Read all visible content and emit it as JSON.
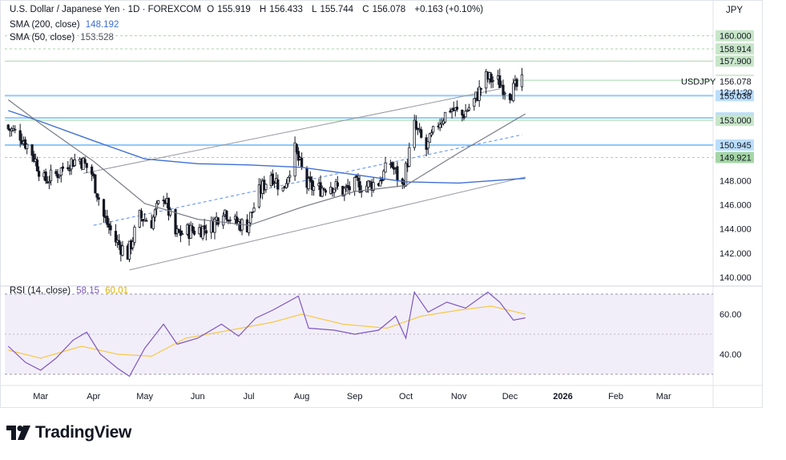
{
  "header": {
    "symbol_title": "U.S. Dollar / Japanese Yen · 1D · FOREXCOM",
    "ohlc": [
      {
        "label": "O",
        "value": "155.919"
      },
      {
        "label": "H",
        "value": "156.433"
      },
      {
        "label": "L",
        "value": "155.744"
      },
      {
        "label": "C",
        "value": "156.078"
      }
    ],
    "change": "+0.163 (+0.10%)"
  },
  "indicators": {
    "sma200": {
      "label": "SMA (200, close)",
      "value": "148.192"
    },
    "sma50": {
      "label": "SMA (50, close)",
      "value": "153.528"
    },
    "rsi": {
      "label": "RSI (14, close)",
      "value": "58.15",
      "ma_value": "60.01"
    }
  },
  "currency": "JPY",
  "branding": "TradingView",
  "colors": {
    "up": "#131722",
    "down": "#131722",
    "sma200": "#3f6fd6",
    "sma50": "#787b86",
    "rsi": "#7e57c2",
    "rsi_ma": "#f7c948",
    "green_label": "#c8e6c9",
    "blue_label": "#bbdefb"
  },
  "chart_data": {
    "type": "candlestick",
    "symbol_label": "USDJPY",
    "countdown": "12:41:20",
    "price_axis": {
      "ticks": [
        140,
        142,
        144,
        146,
        148,
        150,
        152,
        154,
        156,
        158,
        160
      ],
      "tick_labels": [
        "140.000",
        "142.000",
        "144.000",
        "146.000",
        "148.000"
      ],
      "range": [
        139.2,
        161.5
      ]
    },
    "time_axis": {
      "labels": [
        "Mar",
        "Apr",
        "May",
        "Jun",
        "Jul",
        "Aug",
        "Sep",
        "Oct",
        "Nov",
        "Dec",
        "2026",
        "Feb",
        "Mar"
      ],
      "label_dates": [
        "2025-03-01",
        "2025-04-01",
        "2025-05-01",
        "2025-06-01",
        "2025-07-01",
        "2025-08-01",
        "2025-09-01",
        "2025-10-01",
        "2025-11-01",
        "2025-12-01",
        "2026-01-01",
        "2026-02-01",
        "2026-03-01"
      ],
      "start_date": "2025-02-08",
      "end_date": "2026-03-30"
    },
    "price_levels": [
      {
        "price": 160.0,
        "label": "160.000",
        "style": "green"
      },
      {
        "price": 158.914,
        "label": "158.914",
        "style": "green"
      },
      {
        "price": 157.9,
        "label": "157.900",
        "style": "green"
      },
      {
        "price": 156.318,
        "label": "156.318",
        "style": "green"
      },
      {
        "price": 156.078,
        "label": "156.078",
        "style": "current"
      },
      {
        "price": 155.038,
        "label": "155.038",
        "style": "blue"
      },
      {
        "price": 153.194,
        "label": "153.194",
        "style": "blue"
      },
      {
        "price": 153.0,
        "label": "153.000",
        "style": "green"
      },
      {
        "price": 150.945,
        "label": "150.945",
        "style": "blue"
      },
      {
        "price": 149.921,
        "label": "149.921",
        "style": "green-strong"
      }
    ],
    "close_series": [
      [
        "2025-02-10",
        152.3
      ],
      [
        "2025-02-17",
        151.8
      ],
      [
        "2025-02-24",
        150.3
      ],
      [
        "2025-03-03",
        148.0
      ],
      [
        "2025-03-10",
        148.5
      ],
      [
        "2025-03-17",
        149.5
      ],
      [
        "2025-03-24",
        149.8
      ],
      [
        "2025-03-31",
        148.6
      ],
      [
        "2025-04-07",
        145.0
      ],
      [
        "2025-04-14",
        143.0
      ],
      [
        "2025-04-21",
        141.9
      ],
      [
        "2025-04-28",
        145.0
      ],
      [
        "2025-05-05",
        144.6
      ],
      [
        "2025-05-12",
        146.9
      ],
      [
        "2025-05-19",
        143.5
      ],
      [
        "2025-05-26",
        143.8
      ],
      [
        "2025-06-02",
        144.0
      ],
      [
        "2025-06-09",
        144.2
      ],
      [
        "2025-06-16",
        145.7
      ],
      [
        "2025-06-23",
        144.5
      ],
      [
        "2025-06-30",
        144.3
      ],
      [
        "2025-07-07",
        147.0
      ],
      [
        "2025-07-14",
        148.6
      ],
      [
        "2025-07-21",
        147.2
      ],
      [
        "2025-07-28",
        150.5
      ],
      [
        "2025-08-04",
        147.6
      ],
      [
        "2025-08-11",
        147.3
      ],
      [
        "2025-08-18",
        147.7
      ],
      [
        "2025-08-25",
        147.1
      ],
      [
        "2025-09-01",
        147.6
      ],
      [
        "2025-09-08",
        147.6
      ],
      [
        "2025-09-15",
        147.9
      ],
      [
        "2025-09-22",
        149.5
      ],
      [
        "2025-09-29",
        147.5
      ],
      [
        "2025-10-06",
        152.5
      ],
      [
        "2025-10-13",
        150.6
      ],
      [
        "2025-10-20",
        152.8
      ],
      [
        "2025-10-27",
        154.0
      ],
      [
        "2025-11-03",
        153.4
      ],
      [
        "2025-11-10",
        154.6
      ],
      [
        "2025-11-17",
        156.5
      ],
      [
        "2025-11-24",
        156.2
      ],
      [
        "2025-12-01",
        155.3
      ],
      [
        "2025-12-08",
        156.08
      ]
    ],
    "sma200_series": [
      [
        "2025-02-10",
        153.8
      ],
      [
        "2025-03-01",
        152.9
      ],
      [
        "2025-04-01",
        151.3
      ],
      [
        "2025-05-01",
        149.8
      ],
      [
        "2025-06-01",
        149.4
      ],
      [
        "2025-07-01",
        149.3
      ],
      [
        "2025-08-01",
        149.1
      ],
      [
        "2025-09-01",
        148.5
      ],
      [
        "2025-10-01",
        147.9
      ],
      [
        "2025-11-01",
        147.8
      ],
      [
        "2025-12-10",
        148.19
      ]
    ],
    "sma50_series": [
      [
        "2025-02-10",
        154.7
      ],
      [
        "2025-03-01",
        152.7
      ],
      [
        "2025-04-01",
        149.6
      ],
      [
        "2025-05-01",
        146.1
      ],
      [
        "2025-06-01",
        144.8
      ],
      [
        "2025-07-01",
        144.3
      ],
      [
        "2025-08-01",
        145.8
      ],
      [
        "2025-09-01",
        147.1
      ],
      [
        "2025-10-01",
        147.6
      ],
      [
        "2025-11-01",
        150.3
      ],
      [
        "2025-12-10",
        153.53
      ]
    ],
    "channel_lines": [
      {
        "style": "solid",
        "from": [
          "2025-03-26",
          148.6
        ],
        "to": [
          "2025-11-25",
          155.6
        ]
      },
      {
        "style": "solid",
        "from": [
          "2025-04-22",
          140.6
        ],
        "to": [
          "2025-12-10",
          148.3
        ]
      },
      {
        "style": "dashed",
        "from": [
          "2025-04-01",
          144.3
        ],
        "to": [
          "2025-12-08",
          151.8
        ]
      }
    ],
    "rsi": {
      "axis_ticks": [
        40,
        60
      ],
      "tick_labels": [
        "40.00",
        "60.00"
      ],
      "range": [
        26,
        74
      ],
      "band": [
        30,
        70
      ],
      "series": [
        [
          "2025-02-10",
          44
        ],
        [
          "2025-02-20",
          36
        ],
        [
          "2025-03-01",
          32
        ],
        [
          "2025-03-10",
          38
        ],
        [
          "2025-03-20",
          47
        ],
        [
          "2025-03-28",
          51
        ],
        [
          "2025-04-05",
          40
        ],
        [
          "2025-04-15",
          33
        ],
        [
          "2025-04-22",
          29
        ],
        [
          "2025-05-01",
          43
        ],
        [
          "2025-05-12",
          55
        ],
        [
          "2025-05-20",
          45
        ],
        [
          "2025-06-01",
          48
        ],
        [
          "2025-06-15",
          55
        ],
        [
          "2025-06-25",
          49
        ],
        [
          "2025-07-05",
          58
        ],
        [
          "2025-07-15",
          62
        ],
        [
          "2025-07-30",
          69
        ],
        [
          "2025-08-05",
          53
        ],
        [
          "2025-08-20",
          52
        ],
        [
          "2025-09-01",
          50
        ],
        [
          "2025-09-15",
          52
        ],
        [
          "2025-09-25",
          59
        ],
        [
          "2025-10-01",
          48
        ],
        [
          "2025-10-06",
          71
        ],
        [
          "2025-10-14",
          61
        ],
        [
          "2025-10-25",
          66
        ],
        [
          "2025-11-05",
          63
        ],
        [
          "2025-11-18",
          71
        ],
        [
          "2025-11-25",
          66
        ],
        [
          "2025-12-03",
          57
        ],
        [
          "2025-12-10",
          58.15
        ]
      ],
      "ma_series": [
        [
          "2025-02-10",
          42
        ],
        [
          "2025-03-01",
          38
        ],
        [
          "2025-03-25",
          44
        ],
        [
          "2025-04-15",
          40
        ],
        [
          "2025-05-05",
          39
        ],
        [
          "2025-05-25",
          48
        ],
        [
          "2025-06-20",
          52
        ],
        [
          "2025-07-15",
          56
        ],
        [
          "2025-08-01",
          60
        ],
        [
          "2025-08-25",
          55
        ],
        [
          "2025-09-20",
          53
        ],
        [
          "2025-10-10",
          59
        ],
        [
          "2025-11-01",
          62
        ],
        [
          "2025-11-20",
          64
        ],
        [
          "2025-12-10",
          60.01
        ]
      ]
    }
  }
}
